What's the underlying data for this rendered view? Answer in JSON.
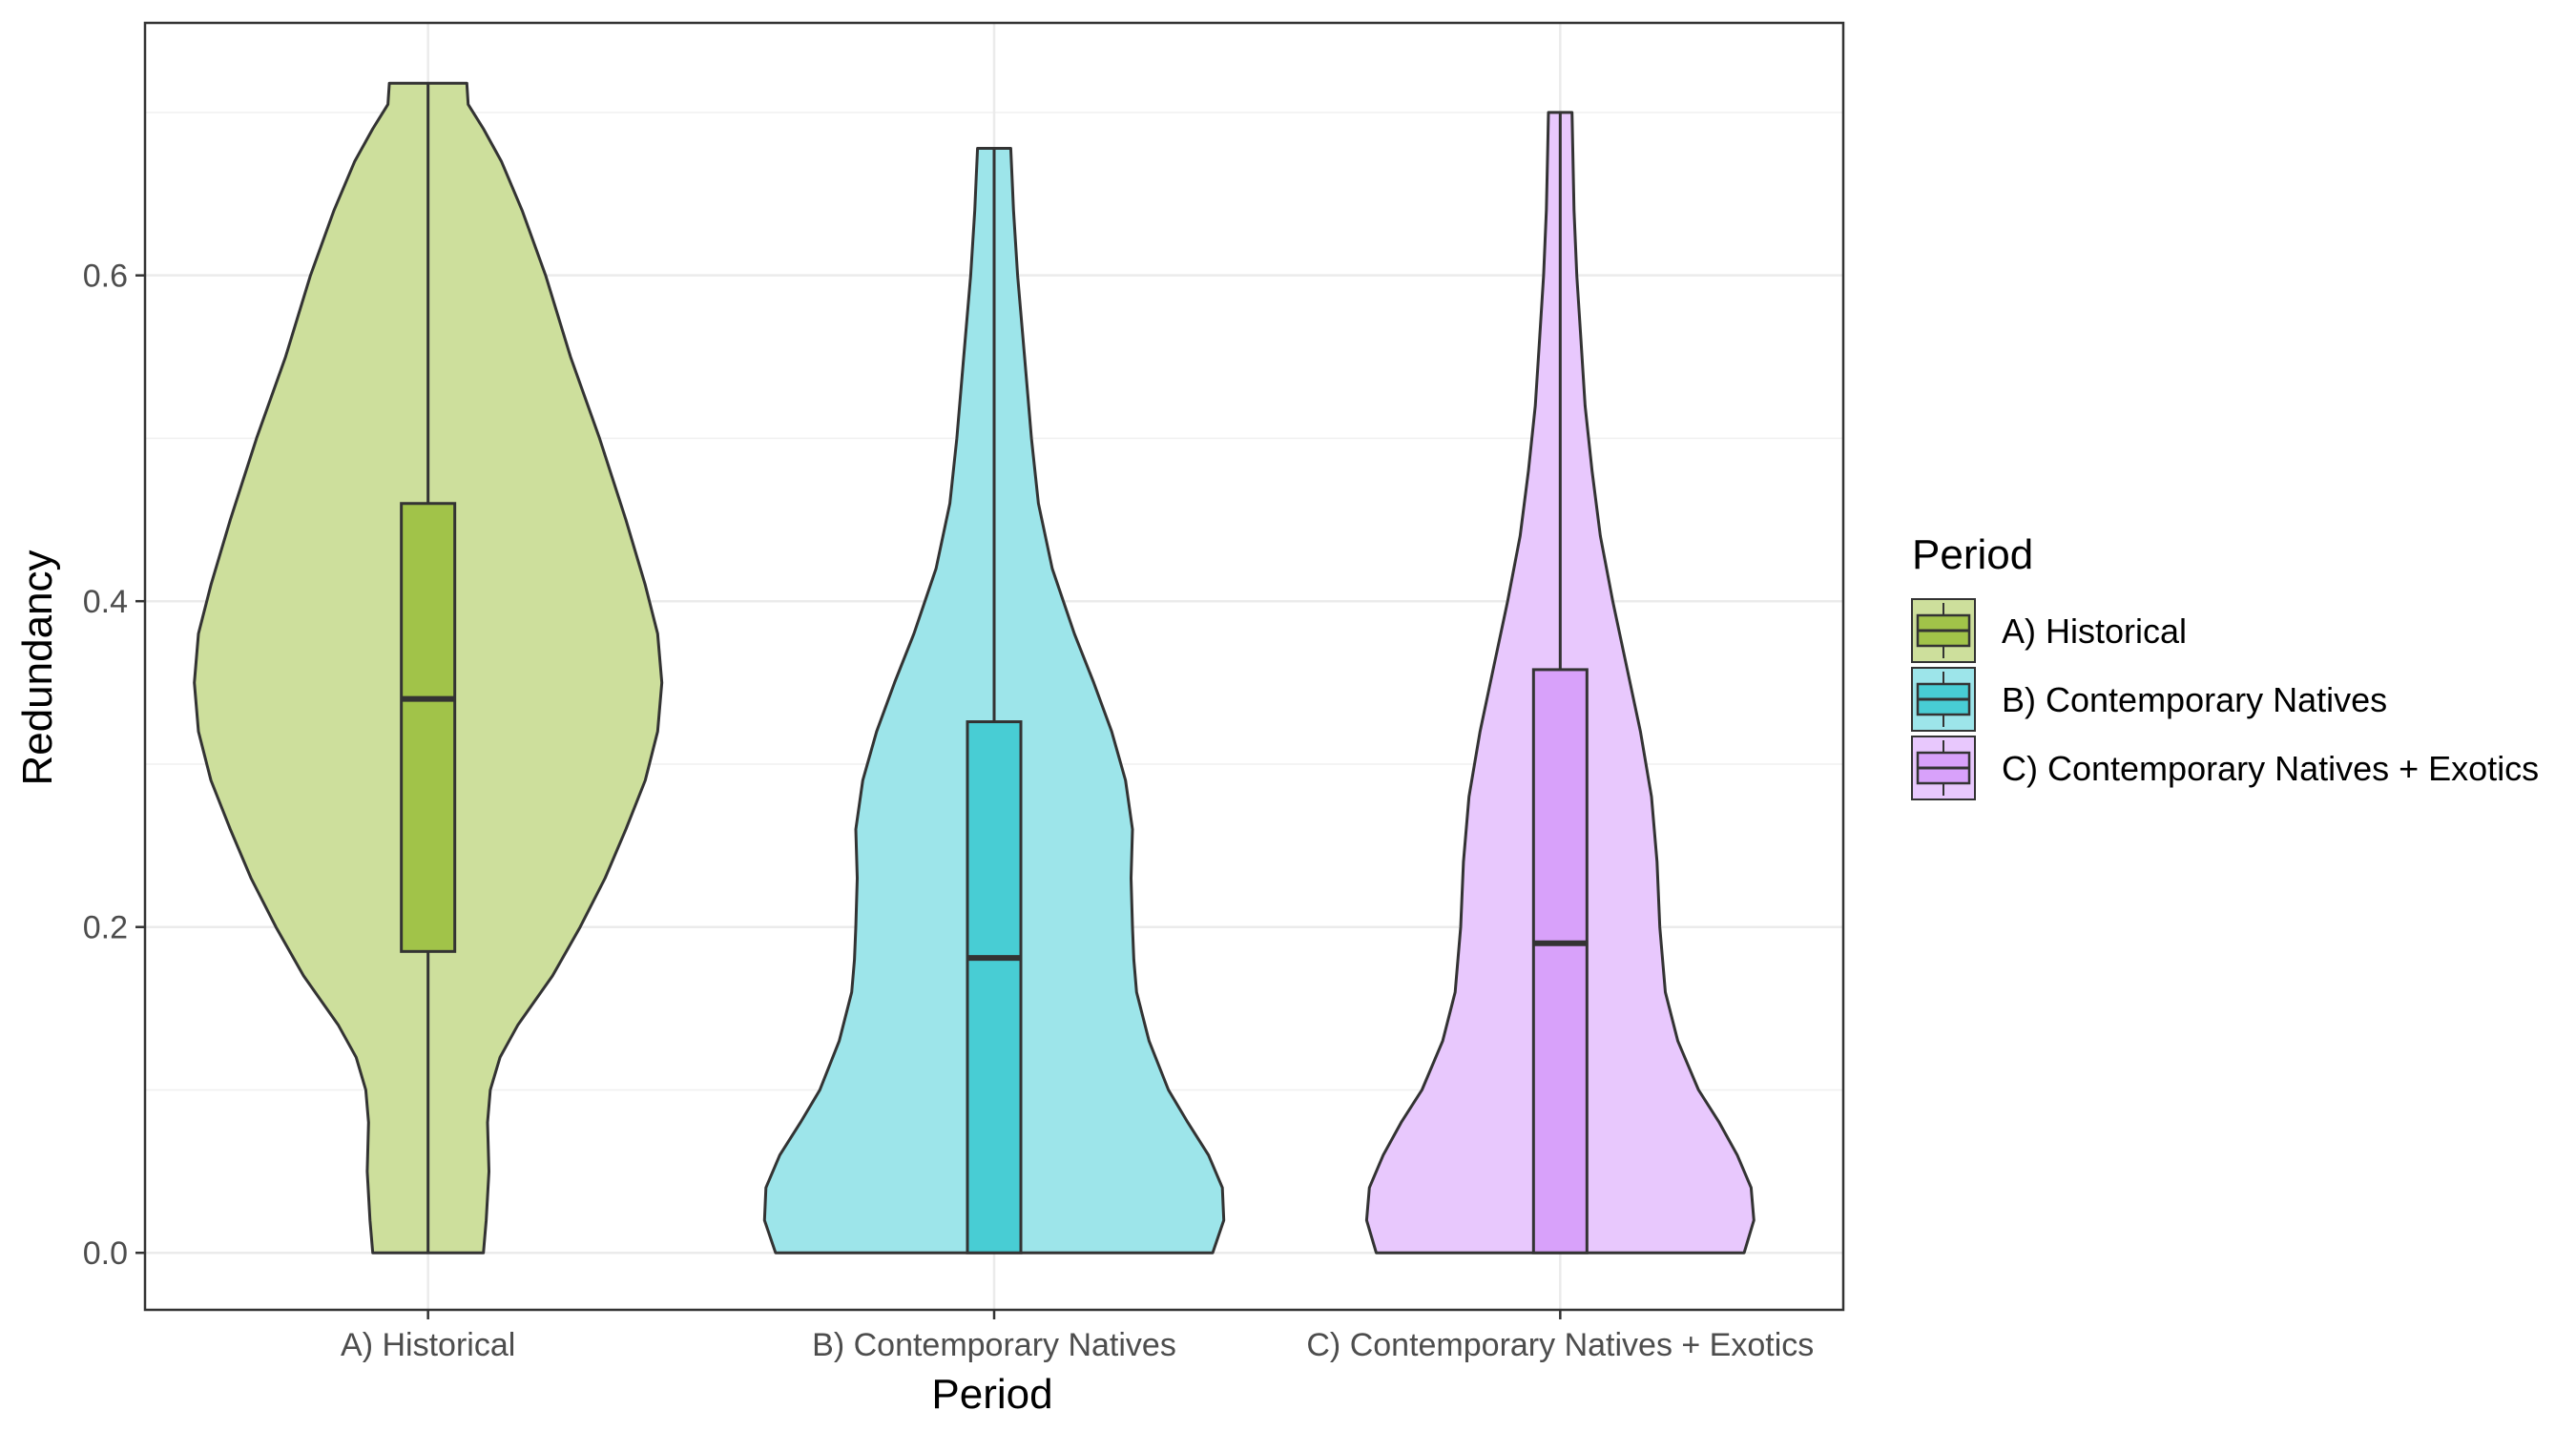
{
  "chart_data": {
    "type": "violin",
    "title": "",
    "xlabel": "Period",
    "ylabel": "Redundancy",
    "ylim": [
      -0.035,
      0.755
    ],
    "yticks": [
      "0.0",
      "0.2",
      "0.4",
      "0.6"
    ],
    "grid": true,
    "legend": {
      "title": "Period",
      "placement": "right"
    },
    "categories": [
      "A) Historical",
      "B) Contemporary Natives",
      "C) Contemporary Natives + Exotics"
    ],
    "series": [
      {
        "name": "A) Historical",
        "color": "#A1C349",
        "violin_fill": "#CDDF9C",
        "min": 0.0,
        "q1": 0.185,
        "median": 0.34,
        "q3": 0.46,
        "max": 0.718,
        "density": [
          [
            0.0,
            0.4
          ],
          [
            0.02,
            0.42
          ],
          [
            0.05,
            0.44
          ],
          [
            0.08,
            0.43
          ],
          [
            0.1,
            0.45
          ],
          [
            0.12,
            0.52
          ],
          [
            0.14,
            0.65
          ],
          [
            0.17,
            0.9
          ],
          [
            0.2,
            1.1
          ],
          [
            0.23,
            1.28
          ],
          [
            0.26,
            1.43
          ],
          [
            0.29,
            1.57
          ],
          [
            0.32,
            1.66
          ],
          [
            0.35,
            1.69
          ],
          [
            0.38,
            1.66
          ],
          [
            0.41,
            1.57
          ],
          [
            0.45,
            1.43
          ],
          [
            0.5,
            1.24
          ],
          [
            0.55,
            1.03
          ],
          [
            0.6,
            0.85
          ],
          [
            0.64,
            0.68
          ],
          [
            0.67,
            0.53
          ],
          [
            0.69,
            0.4
          ],
          [
            0.705,
            0.29
          ],
          [
            0.718,
            0.28
          ]
        ]
      },
      {
        "name": "B) Contemporary Natives",
        "color": "#48CDD4",
        "violin_fill": "#9DE5EA",
        "min": 0.0,
        "q1": 0.0,
        "median": 0.181,
        "q3": 0.326,
        "max": 0.678,
        "density": [
          [
            0.0,
            1.58
          ],
          [
            0.02,
            1.66
          ],
          [
            0.04,
            1.65
          ],
          [
            0.06,
            1.55
          ],
          [
            0.08,
            1.4
          ],
          [
            0.1,
            1.26
          ],
          [
            0.13,
            1.12
          ],
          [
            0.16,
            1.03
          ],
          [
            0.18,
            1.01
          ],
          [
            0.2,
            1.0
          ],
          [
            0.23,
            0.99
          ],
          [
            0.26,
            1.0
          ],
          [
            0.29,
            0.95
          ],
          [
            0.32,
            0.85
          ],
          [
            0.35,
            0.72
          ],
          [
            0.38,
            0.58
          ],
          [
            0.42,
            0.42
          ],
          [
            0.46,
            0.32
          ],
          [
            0.5,
            0.27
          ],
          [
            0.55,
            0.22
          ],
          [
            0.6,
            0.17
          ],
          [
            0.64,
            0.14
          ],
          [
            0.66,
            0.13
          ],
          [
            0.678,
            0.12
          ]
        ]
      },
      {
        "name": "C) Contemporary Natives + Exotics",
        "color": "#D8A1FA",
        "violin_fill": "#E8C8FD",
        "min": 0.0,
        "q1": 0.0,
        "median": 0.19,
        "q3": 0.358,
        "max": 0.7,
        "density": [
          [
            0.0,
            1.33
          ],
          [
            0.02,
            1.4
          ],
          [
            0.04,
            1.38
          ],
          [
            0.06,
            1.28
          ],
          [
            0.08,
            1.15
          ],
          [
            0.1,
            1.0
          ],
          [
            0.13,
            0.85
          ],
          [
            0.16,
            0.76
          ],
          [
            0.2,
            0.72
          ],
          [
            0.24,
            0.7
          ],
          [
            0.28,
            0.66
          ],
          [
            0.32,
            0.58
          ],
          [
            0.36,
            0.48
          ],
          [
            0.4,
            0.38
          ],
          [
            0.44,
            0.29
          ],
          [
            0.48,
            0.23
          ],
          [
            0.52,
            0.18
          ],
          [
            0.56,
            0.15
          ],
          [
            0.6,
            0.12
          ],
          [
            0.64,
            0.1
          ],
          [
            0.68,
            0.09
          ],
          [
            0.7,
            0.085
          ]
        ]
      }
    ]
  }
}
